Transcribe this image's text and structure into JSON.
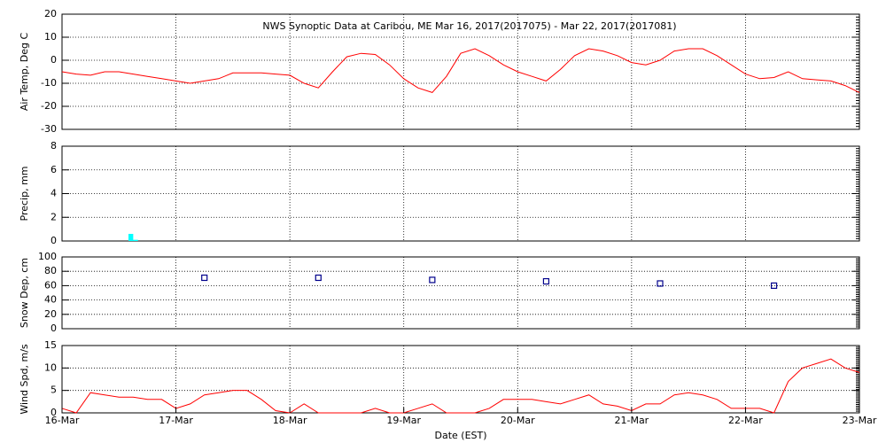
{
  "chart_data": [
    {
      "type": "line",
      "title": "NWS Synoptic Data at Caribou, ME   Mar 16, 2017(2017075) - Mar 22, 2017(2017081)",
      "y_label": "Air Temp, Deg C",
      "color": "#ff0000",
      "x": [
        0,
        3,
        6,
        9,
        12,
        15,
        18,
        21,
        24,
        27,
        30,
        33,
        36,
        39,
        42,
        45,
        48,
        51,
        54,
        57,
        60,
        63,
        66,
        69,
        72,
        75,
        78,
        81,
        84,
        87,
        90,
        93,
        96,
        99,
        102,
        105,
        108,
        111,
        114,
        117,
        120,
        123,
        126,
        129,
        132,
        135,
        138,
        141,
        144,
        147,
        150,
        153,
        156,
        159,
        162,
        165,
        168
      ],
      "values": [
        -5,
        -6,
        -6.5,
        -5,
        -5,
        -6,
        -7,
        -8,
        -9,
        -10,
        -9,
        -8,
        -5.5,
        -5.5,
        -5.5,
        -6,
        -6.5,
        -10,
        -12,
        -5,
        1.5,
        3,
        2.5,
        -2,
        -8,
        -12,
        -14,
        -7,
        3,
        5,
        2,
        -2,
        -5,
        -7,
        -9,
        -4,
        2,
        5,
        4,
        2,
        -1,
        -2,
        0,
        4,
        5,
        5,
        2,
        -2,
        -6,
        -8,
        -7.5,
        -5,
        -8,
        -8.5,
        -9,
        -11,
        -14
      ],
      "ylim": [
        -30,
        20
      ],
      "yticks": [
        -30,
        -20,
        -10,
        0,
        10,
        20
      ],
      "grid": true
    },
    {
      "type": "bar",
      "y_label": "Precip, mm",
      "color": "#00ffff",
      "x": [
        14,
        15
      ],
      "values": [
        0.6,
        0.1
      ],
      "ylim": [
        0,
        8
      ],
      "yticks": [
        0,
        2,
        4,
        6,
        8
      ],
      "grid": true
    },
    {
      "type": "scatter",
      "y_label": "Snow Dep, cm",
      "color": "#00008b",
      "x": [
        30,
        54,
        78,
        102,
        126,
        150
      ],
      "values": [
        71,
        71,
        68,
        66,
        63,
        60
      ],
      "ylim": [
        0,
        100
      ],
      "yticks": [
        0,
        20,
        40,
        60,
        80,
        100
      ],
      "grid": true
    },
    {
      "type": "line",
      "y_label": "Wind Spd, m/s",
      "x_label": "Date (EST)",
      "color": "#ff0000",
      "x": [
        0,
        3,
        6,
        9,
        12,
        15,
        18,
        21,
        24,
        27,
        30,
        33,
        36,
        39,
        42,
        45,
        48,
        51,
        54,
        57,
        60,
        63,
        66,
        69,
        72,
        75,
        78,
        81,
        84,
        87,
        90,
        93,
        96,
        99,
        102,
        105,
        108,
        111,
        114,
        117,
        120,
        123,
        126,
        129,
        132,
        135,
        138,
        141,
        144,
        147,
        150,
        153,
        156,
        159,
        162,
        165,
        168
      ],
      "values": [
        1,
        0,
        4.5,
        4,
        3.5,
        3.5,
        3,
        3,
        1,
        2,
        4,
        4.5,
        5,
        5,
        3,
        0.5,
        0,
        2,
        0,
        0,
        0,
        0,
        1,
        0,
        0,
        1,
        2,
        0,
        0,
        0,
        1,
        3,
        3,
        3,
        2.5,
        2,
        3,
        4,
        2,
        1.5,
        0.5,
        2,
        2,
        4,
        4.5,
        4,
        3,
        1,
        1,
        1,
        0,
        7,
        10,
        11,
        12,
        10,
        9
      ],
      "ylim": [
        0,
        15
      ],
      "yticks": [
        0,
        5,
        10,
        15
      ],
      "grid": true,
      "xlim": [
        0,
        168
      ],
      "xticks": [
        {
          "value": 0,
          "label": "16-Mar"
        },
        {
          "value": 24,
          "label": "17-Mar"
        },
        {
          "value": 48,
          "label": "18-Mar"
        },
        {
          "value": 72,
          "label": "19-Mar"
        },
        {
          "value": 96,
          "label": "20-Mar"
        },
        {
          "value": 120,
          "label": "21-Mar"
        },
        {
          "value": 144,
          "label": "22-Mar"
        },
        {
          "value": 168,
          "label": "23-Mar"
        }
      ]
    }
  ]
}
